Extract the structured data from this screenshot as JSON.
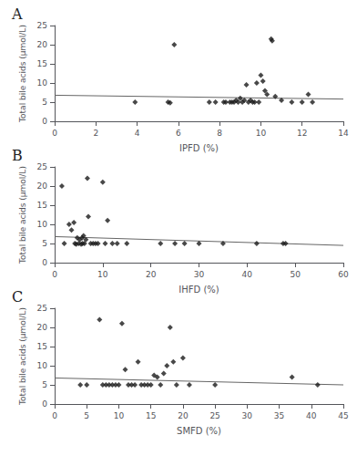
{
  "chart_data": [
    {
      "type": "scatter",
      "title": "A",
      "xlabel": "IPFD (%)",
      "ylabel": "Total bile acids (μmol/L)",
      "xlim": [
        0,
        14
      ],
      "ylim": [
        0,
        25
      ],
      "xticks": [
        0,
        2,
        4,
        6,
        8,
        10,
        12,
        14
      ],
      "yticks": [
        0,
        5,
        10,
        15,
        20,
        25
      ],
      "grid": false,
      "series": [
        {
          "type": "scatter",
          "color": "#1a1a1a",
          "marker": "diamond",
          "x": [
            3.9,
            5.5,
            5.6,
            5.8,
            7.5,
            7.8,
            8.2,
            8.3,
            8.5,
            8.6,
            8.7,
            8.8,
            8.9,
            9.0,
            9.1,
            9.2,
            9.3,
            9.4,
            9.5,
            9.6,
            9.7,
            9.8,
            9.9,
            10.0,
            10.1,
            10.2,
            10.3,
            10.5,
            10.55,
            10.7,
            11.0,
            11.5,
            12.0,
            12.3,
            12.5
          ],
          "values": [
            5.0,
            5.0,
            4.8,
            20.0,
            5.0,
            5.0,
            5.0,
            5.0,
            5.0,
            5.0,
            5.0,
            5.5,
            5.0,
            6.0,
            5.0,
            5.5,
            9.5,
            5.0,
            5.5,
            5.0,
            5.0,
            10.0,
            5.0,
            12.0,
            10.5,
            8.0,
            7.0,
            21.5,
            21.0,
            6.5,
            5.5,
            5.0,
            5.0,
            7.0,
            5.0
          ]
        },
        {
          "type": "line",
          "color": "#666666",
          "x": [
            0,
            14
          ],
          "values": [
            6.8,
            5.8
          ]
        }
      ]
    },
    {
      "type": "scatter",
      "title": "B",
      "xlabel": "IHFD (%)",
      "ylabel": "Total bile acids (μmol/L)",
      "xlim": [
        0,
        60
      ],
      "ylim": [
        0,
        25
      ],
      "xticks": [
        0,
        10,
        20,
        30,
        40,
        50,
        60
      ],
      "yticks": [
        0,
        5,
        10,
        15,
        20,
        25
      ],
      "grid": false,
      "series": [
        {
          "type": "scatter",
          "color": "#1a1a1a",
          "marker": "diamond",
          "x": [
            1.5,
            2.0,
            3.0,
            3.5,
            4.0,
            4.2,
            4.5,
            4.7,
            5.0,
            5.2,
            5.5,
            5.7,
            5.8,
            6.0,
            6.2,
            6.5,
            6.8,
            7.0,
            7.5,
            8.0,
            8.5,
            9.0,
            10.0,
            10.5,
            11.0,
            12.0,
            13.0,
            15.0,
            22.0,
            25.0,
            27.0,
            30.0,
            35.0,
            42.0,
            47.5,
            48.0
          ],
          "values": [
            20.0,
            5.0,
            10.0,
            8.5,
            10.5,
            5.0,
            4.8,
            6.5,
            5.0,
            6.0,
            4.8,
            6.5,
            5.0,
            7.0,
            5.0,
            6.0,
            22.0,
            12.0,
            5.0,
            5.0,
            5.0,
            5.0,
            21.0,
            5.0,
            11.0,
            5.0,
            5.0,
            5.0,
            5.0,
            5.0,
            5.0,
            5.0,
            5.0,
            5.0,
            5.0,
            5.0
          ]
        },
        {
          "type": "line",
          "color": "#666666",
          "x": [
            0,
            60
          ],
          "values": [
            6.8,
            4.5
          ]
        }
      ]
    },
    {
      "type": "scatter",
      "title": "C",
      "xlabel": "SMFD (%)",
      "ylabel": "Total bile acids (μmol/L)",
      "xlim": [
        0,
        45
      ],
      "ylim": [
        0,
        25
      ],
      "xticks": [
        0,
        5,
        10,
        15,
        20,
        25,
        30,
        35,
        40,
        45
      ],
      "yticks": [
        0,
        5,
        10,
        15,
        20,
        25
      ],
      "grid": false,
      "series": [
        {
          "type": "scatter",
          "color": "#1a1a1a",
          "marker": "diamond",
          "x": [
            4.0,
            5.0,
            7.0,
            7.5,
            8.0,
            8.5,
            9.0,
            9.5,
            10.0,
            10.5,
            11.0,
            11.5,
            12.0,
            12.5,
            13.0,
            13.5,
            14.0,
            14.5,
            15.0,
            15.5,
            16.0,
            16.5,
            17.0,
            17.5,
            18.0,
            18.5,
            19.0,
            20.0,
            21.0,
            25.0,
            37.0,
            41.0
          ],
          "values": [
            5.0,
            5.0,
            22.0,
            5.0,
            5.0,
            5.0,
            5.0,
            5.0,
            5.0,
            21.0,
            9.0,
            5.0,
            5.0,
            5.0,
            11.0,
            5.0,
            5.0,
            5.0,
            5.0,
            7.5,
            7.0,
            5.0,
            8.0,
            10.0,
            20.0,
            11.0,
            5.0,
            12.0,
            5.0,
            5.0,
            7.0,
            5.0
          ]
        },
        {
          "type": "line",
          "color": "#666666",
          "x": [
            0,
            45
          ],
          "values": [
            6.8,
            5.0
          ]
        }
      ]
    }
  ]
}
